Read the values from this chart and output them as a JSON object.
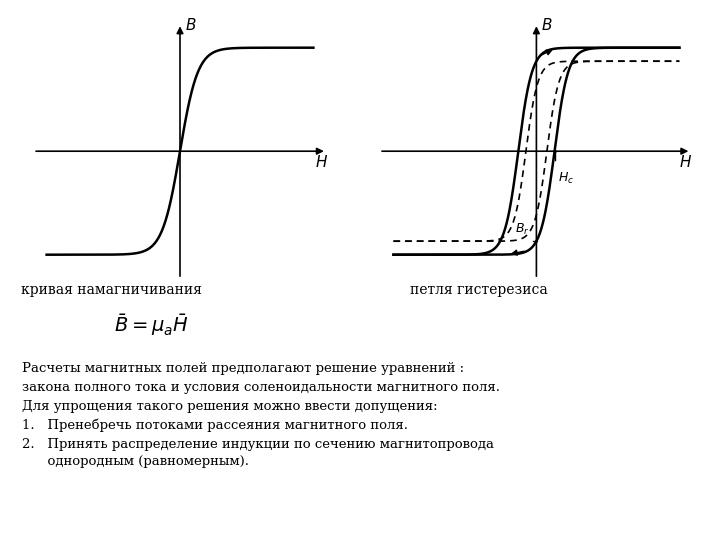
{
  "bg_color": "#ffffff",
  "text_color": "#000000",
  "left_plot": {
    "title_x": "H",
    "title_y": "B"
  },
  "right_plot": {
    "title_x": "H",
    "title_y": "B",
    "label_Br": "$B_r$",
    "label_Hc": "$H_c$"
  },
  "label_left": "кривая намагничивания",
  "label_right": "петля гистерезиса",
  "formula": "$\\bar{B} = \\mu_a \\bar{H}$",
  "text_lines": [
    "Расчеты магнитных полей предполагают решение уравнений :",
    "закона полного тока и условия соленоидальности магнитного поля.",
    "Для упрощения такого решения можно ввести допущения:",
    "1.   Пренебречь потоками рассеяния магнитного поля.",
    "2.   Принять распределение индукции по сечению магнитопровода",
    "      однородным (равномерным)."
  ]
}
